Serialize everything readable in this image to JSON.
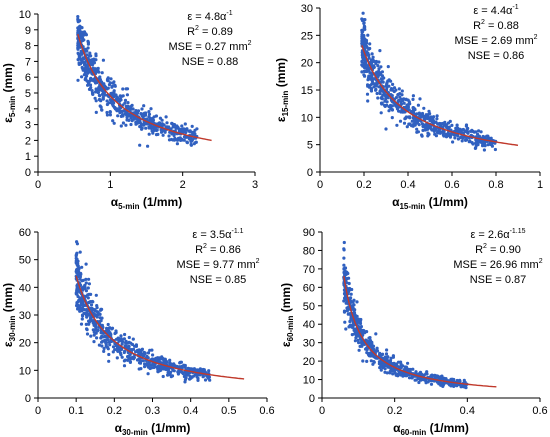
{
  "chart_data": [
    {
      "type": "scatter",
      "xlabel": "α",
      "xlabel_sub": "5-min",
      "xlabel_unit": " (1/mm)",
      "ylabel": "ε",
      "ylabel_sub": "5-min",
      "ylabel_unit": " (mm)",
      "xlim": [
        0,
        3
      ],
      "ylim": [
        0,
        10
      ],
      "xticks": [
        "0",
        "1",
        "2",
        "3"
      ],
      "yticks": [
        "0",
        "1",
        "2",
        "3",
        "4",
        "5",
        "6",
        "7",
        "8",
        "9",
        "10"
      ],
      "fit": {
        "a": 4.8,
        "b": -1.0,
        "x_range": [
          0.55,
          2.4
        ]
      },
      "scatter_x_range": [
        0.55,
        2.2
      ],
      "scatter_spread": 0.12,
      "annotation": {
        "eq_base": "ε = 4.8α",
        "eq_exp": "-1",
        "r2_base": "R",
        "r2_exp": "2",
        "r2_val": " = 0.89",
        "mse": "MSE = 0.27 mm",
        "mse_exp": "2",
        "nse": "NSE = 0.88"
      },
      "point_color": "#3060c0",
      "fit_color": "#c0392b"
    },
    {
      "type": "scatter",
      "xlabel": "α",
      "xlabel_sub": "15-min",
      "xlabel_unit": " (1/mm)",
      "ylabel": "ε",
      "ylabel_sub": "15-min",
      "ylabel_unit": " (mm)",
      "xlim": [
        0,
        1
      ],
      "ylim": [
        0,
        30
      ],
      "xticks": [
        "0",
        "0.2",
        "0.4",
        "0.6",
        "0.8",
        "1"
      ],
      "yticks": [
        "0",
        "5",
        "10",
        "15",
        "20",
        "25",
        "30"
      ],
      "fit": {
        "a": 4.4,
        "b": -1.0,
        "x_range": [
          0.19,
          0.9
        ]
      },
      "scatter_x_range": [
        0.19,
        0.8
      ],
      "scatter_spread": 0.12,
      "annotation": {
        "eq_base": "ε = 4.4α",
        "eq_exp": "-1",
        "r2_base": "R",
        "r2_exp": "2",
        "r2_val": " = 0.88",
        "mse": "MSE = 2.69 mm",
        "mse_exp": "2",
        "nse": "NSE = 0.86"
      },
      "point_color": "#3060c0",
      "fit_color": "#c0392b"
    },
    {
      "type": "scatter",
      "xlabel": "α",
      "xlabel_sub": "30-min",
      "xlabel_unit": " (1/mm)",
      "ylabel": "ε",
      "ylabel_sub": "30-min",
      "ylabel_unit": " (mm)",
      "xlim": [
        0,
        0.6
      ],
      "ylim": [
        0,
        60
      ],
      "xticks": [
        "0",
        "0.1",
        "0.2",
        "0.3",
        "0.4",
        "0.5",
        "0.6"
      ],
      "yticks": [
        "0",
        "10",
        "20",
        "30",
        "40",
        "50",
        "60"
      ],
      "fit": {
        "a": 3.5,
        "b": -1.1,
        "x_range": [
          0.1,
          0.54
        ]
      },
      "scatter_x_range": [
        0.1,
        0.45
      ],
      "scatter_spread": 0.13,
      "annotation": {
        "eq_base": "ε = 3.5α",
        "eq_exp": "-1.1",
        "r2_base": "R",
        "r2_exp": "2",
        "r2_val": " = 0.86",
        "mse": "MSE = 9.77 mm",
        "mse_exp": "2",
        "nse": "NSE = 0.85"
      },
      "point_color": "#3060c0",
      "fit_color": "#c0392b"
    },
    {
      "type": "scatter",
      "xlabel": "α",
      "xlabel_sub": "60-min",
      "xlabel_unit": " (1/mm)",
      "ylabel": "ε",
      "ylabel_sub": "60-min",
      "ylabel_unit": " (mm)",
      "xlim": [
        0,
        0.6
      ],
      "ylim": [
        0,
        90
      ],
      "xticks": [
        "0",
        "0.2",
        "0.4",
        "0.6"
      ],
      "yticks": [
        "0",
        "10",
        "20",
        "30",
        "40",
        "50",
        "60",
        "70",
        "80",
        "90"
      ],
      "fit": {
        "a": 2.6,
        "b": -1.15,
        "x_range": [
          0.06,
          0.48
        ]
      },
      "scatter_x_range": [
        0.06,
        0.4
      ],
      "scatter_spread": 0.13,
      "annotation": {
        "eq_base": "ε = 2.6α",
        "eq_exp": "-1.15",
        "r2_base": "R",
        "r2_exp": "2",
        "r2_val": " = 0.90",
        "mse": "MSE = 26.96 mm",
        "mse_exp": "2",
        "nse": "NSE = 0.87"
      },
      "point_color": "#3060c0",
      "fit_color": "#c0392b"
    }
  ]
}
